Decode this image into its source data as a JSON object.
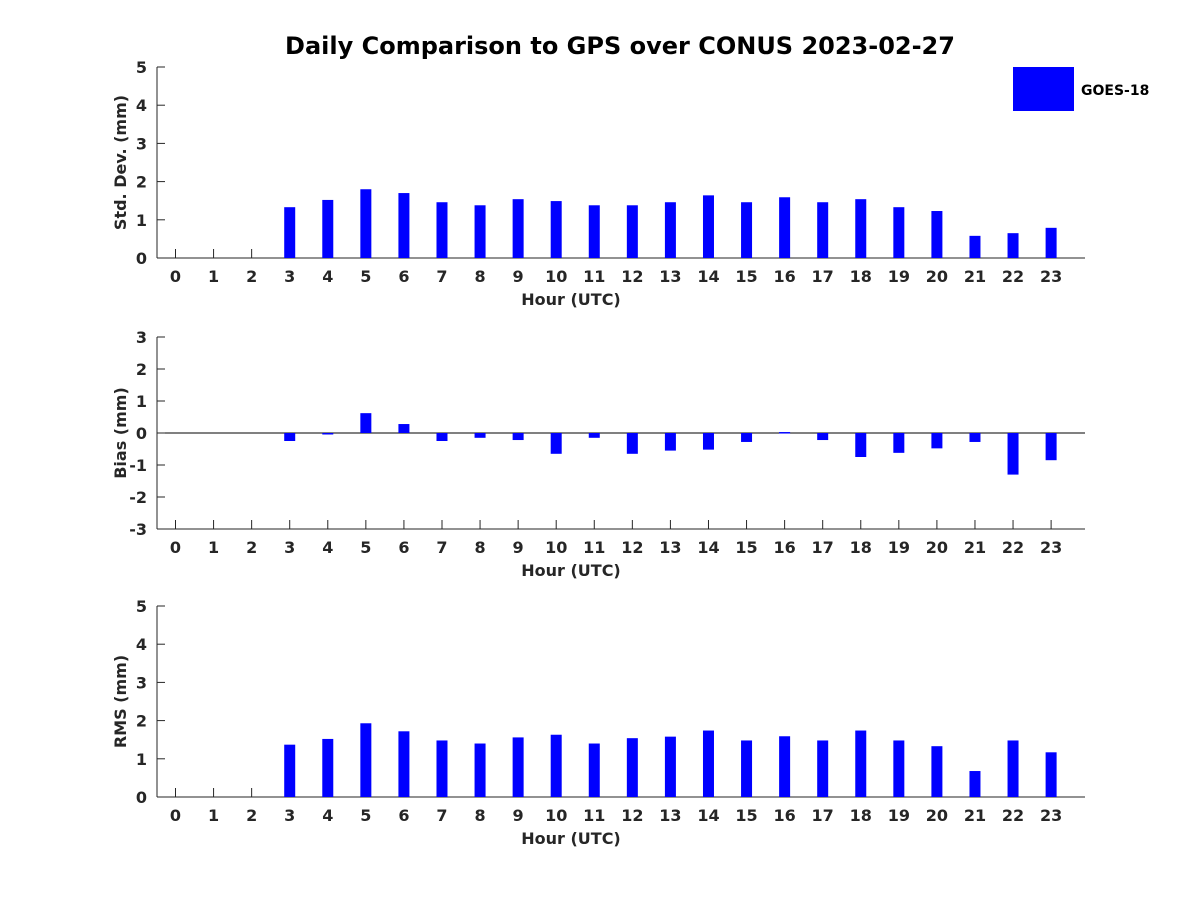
{
  "title": "Daily Comparison to GPS over CONUS 2023-02-27",
  "legend": {
    "label": "GOES-18",
    "color": "#0000ff"
  },
  "colors": {
    "bar": "#0000ff",
    "axis": "#262626"
  },
  "chart_data": [
    {
      "type": "bar",
      "series": [
        {
          "name": "GOES-18",
          "values": [
            null,
            null,
            null,
            1.33,
            1.52,
            1.8,
            1.7,
            1.46,
            1.38,
            1.54,
            1.49,
            1.38,
            1.38,
            1.46,
            1.64,
            1.46,
            1.59,
            1.46,
            1.54,
            1.33,
            1.23,
            0.58,
            0.65,
            0.79
          ]
        }
      ],
      "categories": [
        "0",
        "1",
        "2",
        "3",
        "4",
        "5",
        "6",
        "7",
        "8",
        "9",
        "10",
        "11",
        "12",
        "13",
        "14",
        "15",
        "16",
        "17",
        "18",
        "19",
        "20",
        "21",
        "22",
        "23"
      ],
      "xlabel": "Hour (UTC)",
      "ylabel": "Std. Dev. (mm)",
      "ylim": [
        0,
        5
      ],
      "yticks": [
        "0",
        "1",
        "2",
        "3",
        "4",
        "5"
      ],
      "grid": false,
      "legend_position": "top-right"
    },
    {
      "type": "bar",
      "series": [
        {
          "name": "GOES-18",
          "values": [
            null,
            null,
            null,
            -0.25,
            0.0,
            0.62,
            0.28,
            -0.25,
            -0.15,
            -0.22,
            -0.65,
            -0.15,
            -0.65,
            -0.55,
            -0.52,
            -0.28,
            0.03,
            -0.22,
            -0.75,
            -0.62,
            -0.48,
            -0.28,
            -1.3,
            -0.85
          ]
        }
      ],
      "categories": [
        "0",
        "1",
        "2",
        "3",
        "4",
        "5",
        "6",
        "7",
        "8",
        "9",
        "10",
        "11",
        "12",
        "13",
        "14",
        "15",
        "16",
        "17",
        "18",
        "19",
        "20",
        "21",
        "22",
        "23"
      ],
      "xlabel": "Hour (UTC)",
      "ylabel": "Bias (mm)",
      "ylim": [
        -3,
        3
      ],
      "yticks": [
        "-3",
        "-2",
        "-1",
        "0",
        "1",
        "2",
        "3"
      ],
      "grid": false
    },
    {
      "type": "bar",
      "series": [
        {
          "name": "GOES-18",
          "values": [
            null,
            null,
            null,
            1.37,
            1.52,
            1.93,
            1.72,
            1.48,
            1.4,
            1.56,
            1.63,
            1.4,
            1.54,
            1.58,
            1.74,
            1.48,
            1.59,
            1.48,
            1.74,
            1.48,
            1.33,
            0.68,
            1.48,
            1.17
          ]
        }
      ],
      "categories": [
        "0",
        "1",
        "2",
        "3",
        "4",
        "5",
        "6",
        "7",
        "8",
        "9",
        "10",
        "11",
        "12",
        "13",
        "14",
        "15",
        "16",
        "17",
        "18",
        "19",
        "20",
        "21",
        "22",
        "23"
      ],
      "xlabel": "Hour (UTC)",
      "ylabel": "RMS (mm)",
      "ylim": [
        0,
        5
      ],
      "yticks": [
        "0",
        "1",
        "2",
        "3",
        "4",
        "5"
      ],
      "grid": false
    }
  ]
}
